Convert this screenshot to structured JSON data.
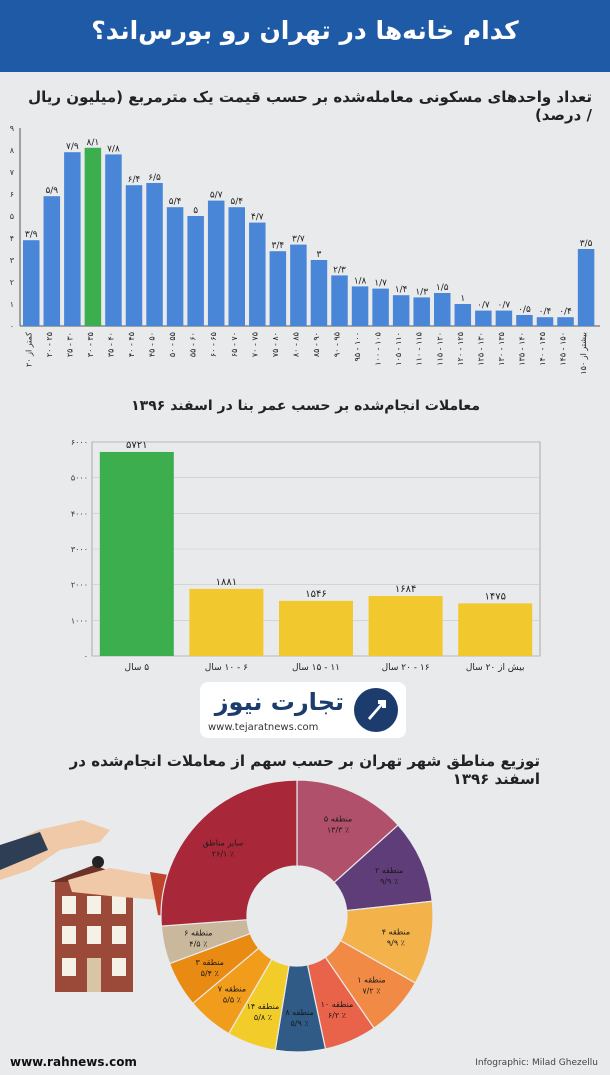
{
  "header": {
    "title": "کدام خانه‌ها در تهران رو بورس‌اند؟"
  },
  "chart_data": [
    {
      "type": "bar",
      "title": "تعداد واحدهای مسکونی معامله‌شده بر حسب قیمت یک مترمربع (میلیون ریال / درصد)",
      "categories": [
        "کمتر از ۲۰",
        "۲۰ - ۲۵",
        "۲۵ - ۳۰",
        "۳۰ - ۳۵",
        "۳۵ - ۴۰",
        "۴۰ - ۴۵",
        "۴۵ - ۵۰",
        "۵۰ - ۵۵",
        "۵۵ - ۶۰",
        "۶۰ - ۶۵",
        "۶۵ - ۷۰",
        "۷۰ - ۷۵",
        "۷۵ - ۸۰",
        "۸۰ - ۸۵",
        "۸۵ - ۹۰",
        "۹۰ - ۹۵",
        "۹۵ - ۱۰۰",
        "۱۰۰ - ۱۰۵",
        "۱۰۵ - ۱۱۰",
        "۱۱۰ - ۱۱۵",
        "۱۱۵ - ۱۲۰",
        "۱۲۰ - ۱۲۵",
        "۱۲۵ - ۱۳۰",
        "۱۳۰ - ۱۳۵",
        "۱۳۵ - ۱۴۰",
        "۱۴۰ - ۱۴۵",
        "۱۴۵ - ۱۵۰",
        "بیشتر از ۱۵۰"
      ],
      "values": [
        3.9,
        5.9,
        7.9,
        8.1,
        7.8,
        6.4,
        6.5,
        5.4,
        5,
        5.7,
        5.4,
        4.7,
        3.4,
        3.7,
        3,
        2.3,
        1.8,
        1.7,
        1.4,
        1.3,
        1.5,
        1,
        0.7,
        0.7,
        0.5,
        0.4,
        0.4,
        3.5
      ],
      "value_labels": [
        "۳/۹",
        "۵/۹",
        "۷/۹",
        "۸/۱",
        "۷/۸",
        "۶/۴",
        "۶/۵",
        "۵/۴",
        "۵",
        "۵/۷",
        "۵/۴",
        "۴/۷",
        "۳/۴",
        "۳/۷",
        "۳",
        "۲/۳",
        "۱/۸",
        "۱/۷",
        "۱/۴",
        "۱/۳",
        "۱/۵",
        "۱",
        "۰/۷",
        "۰/۷",
        "۰/۵",
        "۰/۴",
        "۰/۴",
        "۳/۵"
      ],
      "highlight_index": 3,
      "yticks": [
        0,
        1,
        2,
        3,
        4,
        5,
        6,
        7,
        8,
        9
      ],
      "ytick_labels": [
        "۰",
        "۱",
        "۲",
        "۳",
        "۴",
        "۵",
        "۶",
        "۷",
        "۸",
        "۹"
      ],
      "ylim": [
        0,
        9
      ],
      "grid": false,
      "colors": {
        "bar": "#4a86d8",
        "highlight": "#3cae4e"
      }
    },
    {
      "type": "bar",
      "title": "معاملات انجام‌شده بر حسب عمر بنا در اسفند ۱۳۹۶",
      "categories": [
        "۵ سال",
        "۶ - ۱۰ سال",
        "۱۱ - ۱۵ سال",
        "۱۶ - ۲۰ سال",
        "بیش از ۲۰ سال"
      ],
      "values": [
        5721,
        1881,
        1546,
        1684,
        1475
      ],
      "value_labels": [
        "۵۷۲۱",
        "۱۸۸۱",
        "۱۵۴۶",
        "۱۶۸۴",
        "۱۴۷۵"
      ],
      "highlight_index": 0,
      "yticks": [
        0,
        1000,
        2000,
        3000,
        4000,
        5000,
        6000
      ],
      "ytick_labels": [
        "۰",
        "۱۰۰۰",
        "۲۰۰۰",
        "۳۰۰۰",
        "۴۰۰۰",
        "۵۰۰۰",
        "۶۰۰۰"
      ],
      "ylim": [
        0,
        6000
      ],
      "grid": true,
      "colors": {
        "bar": "#f2c82f",
        "highlight": "#3cae4e"
      }
    },
    {
      "type": "pie",
      "title": "توزیع مناطق شهر تهران بر حسب سهم از معاملات انجام‌شده در اسفند ۱۳۹۶",
      "donut": true,
      "slices": [
        {
          "name": "منطقه ۵",
          "value": 13.3,
          "label": "٪ ۱۳/۳",
          "color": "#b0506a"
        },
        {
          "name": "منطقه ۲",
          "value": 9.9,
          "label": "٪ ۹/۹",
          "color": "#5e3d79"
        },
        {
          "name": "منطقه ۴",
          "value": 9.9,
          "label": "٪ ۹/۹",
          "color": "#f4b24a"
        },
        {
          "name": "منطقه ۱",
          "value": 7.2,
          "label": "٪ ۷/۲",
          "color": "#f08a44"
        },
        {
          "name": "منطقه ۱۰",
          "value": 6.2,
          "label": "٪ ۶/۲",
          "color": "#e8634a"
        },
        {
          "name": "منطقه ۸",
          "value": 5.9,
          "label": "٪ ۵/۹",
          "color": "#2f5b86"
        },
        {
          "name": "منطقه ۱۴",
          "value": 5.8,
          "label": "٪ ۵/۸",
          "color": "#f2cd2a"
        },
        {
          "name": "منطقه ۷",
          "value": 5.5,
          "label": "٪ ۵/۵",
          "color": "#f29c1c"
        },
        {
          "name": "منطقه ۳",
          "value": 5.4,
          "label": "٪ ۵/۴",
          "color": "#e98a12"
        },
        {
          "name": "منطقه ۶",
          "value": 4.5,
          "label": "٪ ۴/۵",
          "color": "#c9b89b"
        },
        {
          "name": "سایر مناطق",
          "value": 26.1,
          "label": "٪ ۲۶/۱",
          "color": "#a8283a"
        }
      ]
    }
  ],
  "logo": {
    "name": "تجارت نیوز",
    "url": "www.tejaratnews.com"
  },
  "footer": {
    "source_site": "www.rahnews.com",
    "credit": "Infographic: Milad Ghezellu"
  }
}
